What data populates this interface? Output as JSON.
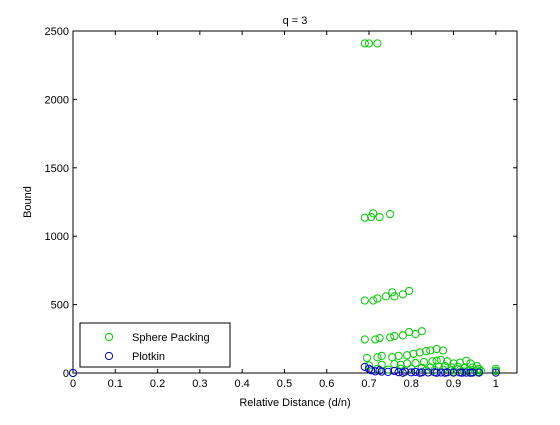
{
  "chart_data": {
    "type": "scatter",
    "title": "q = 3",
    "xlabel": "Relative Distance (d/n)",
    "ylabel": "Bound",
    "xlim": [
      0,
      1.05
    ],
    "ylim": [
      0,
      2500
    ],
    "xticks": [
      "0",
      "0.1",
      "0.2",
      "0.3",
      "0.4",
      "0.5",
      "0.6",
      "0.7",
      "0.8",
      "0.9",
      "1"
    ],
    "yticks": [
      "0",
      "500",
      "1000",
      "1500",
      "2000",
      "2500"
    ],
    "grid": false,
    "legend_position": "bottom-left",
    "colors": {
      "sphere_packing": "#00cc00",
      "plotkin": "#0000cc"
    },
    "series": [
      {
        "name": "Sphere Packing",
        "marker": "open-circle",
        "points": [
          [
            0.0,
            0
          ],
          [
            0.69,
            2409
          ],
          [
            0.7,
            2409
          ],
          [
            0.72,
            2409
          ],
          [
            0.69,
            1135
          ],
          [
            0.705,
            1140
          ],
          [
            0.71,
            1167
          ],
          [
            0.725,
            1140
          ],
          [
            0.75,
            1162
          ],
          [
            0.69,
            530
          ],
          [
            0.71,
            530
          ],
          [
            0.72,
            545
          ],
          [
            0.74,
            560
          ],
          [
            0.755,
            590
          ],
          [
            0.76,
            560
          ],
          [
            0.78,
            575
          ],
          [
            0.795,
            600
          ],
          [
            0.69,
            245
          ],
          [
            0.715,
            245
          ],
          [
            0.725,
            255
          ],
          [
            0.75,
            260
          ],
          [
            0.76,
            270
          ],
          [
            0.78,
            275
          ],
          [
            0.795,
            300
          ],
          [
            0.81,
            285
          ],
          [
            0.825,
            305
          ],
          [
            0.695,
            110
          ],
          [
            0.72,
            115
          ],
          [
            0.73,
            125
          ],
          [
            0.755,
            115
          ],
          [
            0.77,
            125
          ],
          [
            0.79,
            130
          ],
          [
            0.805,
            140
          ],
          [
            0.82,
            150
          ],
          [
            0.835,
            160
          ],
          [
            0.845,
            165
          ],
          [
            0.86,
            175
          ],
          [
            0.875,
            165
          ],
          [
            0.7,
            55
          ],
          [
            0.73,
            60
          ],
          [
            0.76,
            65
          ],
          [
            0.775,
            60
          ],
          [
            0.79,
            70
          ],
          [
            0.81,
            72
          ],
          [
            0.83,
            80
          ],
          [
            0.85,
            85
          ],
          [
            0.86,
            90
          ],
          [
            0.87,
            95
          ],
          [
            0.885,
            85
          ],
          [
            0.9,
            70
          ],
          [
            0.915,
            75
          ],
          [
            0.93,
            90
          ],
          [
            0.94,
            70
          ],
          [
            0.955,
            50
          ],
          [
            0.72,
            30
          ],
          [
            0.745,
            25
          ],
          [
            0.775,
            30
          ],
          [
            0.8,
            32
          ],
          [
            0.825,
            38
          ],
          [
            0.845,
            40
          ],
          [
            0.865,
            45
          ],
          [
            0.88,
            50
          ],
          [
            0.895,
            40
          ],
          [
            0.91,
            45
          ],
          [
            0.925,
            35
          ],
          [
            0.945,
            40
          ],
          [
            0.96,
            30
          ],
          [
            0.835,
            20
          ],
          [
            0.855,
            22
          ],
          [
            0.875,
            25
          ],
          [
            0.895,
            20
          ],
          [
            0.915,
            22
          ],
          [
            0.935,
            18
          ],
          [
            0.955,
            20
          ],
          [
            0.965,
            15
          ],
          [
            0.9,
            10
          ],
          [
            0.925,
            10
          ],
          [
            0.945,
            8
          ],
          [
            0.96,
            8
          ],
          [
            1.0,
            30
          ],
          [
            1.0,
            15
          ]
        ]
      },
      {
        "name": "Plotkin",
        "marker": "open-circle",
        "points": [
          [
            0.0,
            0
          ],
          [
            0.69,
            45
          ],
          [
            0.7,
            30
          ],
          [
            0.705,
            20
          ],
          [
            0.715,
            12
          ],
          [
            0.725,
            20
          ],
          [
            0.73,
            10
          ],
          [
            0.745,
            8
          ],
          [
            0.76,
            15
          ],
          [
            0.77,
            6
          ],
          [
            0.785,
            10
          ],
          [
            0.8,
            5
          ],
          [
            0.81,
            8
          ],
          [
            0.825,
            5
          ],
          [
            0.84,
            4
          ],
          [
            0.855,
            6
          ],
          [
            0.87,
            4
          ],
          [
            0.885,
            5
          ],
          [
            0.9,
            3
          ],
          [
            0.915,
            4
          ],
          [
            0.93,
            3
          ],
          [
            0.945,
            3
          ],
          [
            0.96,
            3
          ],
          [
            0.78,
            2
          ],
          [
            0.82,
            2
          ],
          [
            0.86,
            2
          ],
          [
            0.88,
            2
          ],
          [
            0.92,
            2
          ],
          [
            0.94,
            2
          ],
          [
            1.0,
            3
          ]
        ]
      }
    ]
  }
}
